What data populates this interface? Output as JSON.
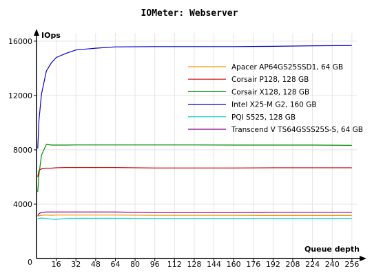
{
  "chart_data": {
    "type": "line",
    "title": "IOMeter: Webserver",
    "xlabel": "Queue depth",
    "ylabel": "IOps",
    "xlim": [
      0,
      260
    ],
    "ylim": [
      0,
      16600
    ],
    "xticks": [
      16,
      32,
      48,
      64,
      80,
      96,
      112,
      128,
      144,
      160,
      176,
      192,
      208,
      224,
      240,
      256
    ],
    "yticks": [
      4000,
      8000,
      12000,
      16000
    ],
    "origin_label": "0",
    "legend_position": "upper-right",
    "series": [
      {
        "name": "Apacer AP64GS25SSD1, 64 GB",
        "color": "#ff9900",
        "x": [
          1,
          2,
          4,
          8,
          12,
          16,
          24,
          32,
          48,
          64,
          96,
          128,
          160,
          192,
          224,
          256
        ],
        "y": [
          3100,
          3150,
          3180,
          3200,
          3180,
          3200,
          3200,
          3200,
          3200,
          3200,
          3180,
          3180,
          3180,
          3170,
          3170,
          3170
        ]
      },
      {
        "name": "Corsair P128, 128 GB",
        "color": "#cc0000",
        "x": [
          1,
          2,
          4,
          8,
          12,
          16,
          24,
          32,
          48,
          64,
          96,
          128,
          160,
          192,
          224,
          256
        ],
        "y": [
          6000,
          6500,
          6600,
          6650,
          6650,
          6680,
          6700,
          6700,
          6700,
          6700,
          6660,
          6660,
          6660,
          6680,
          6680,
          6680
        ]
      },
      {
        "name": "Corsair X128, 128 GB",
        "color": "#008800",
        "x": [
          1,
          2,
          4,
          8,
          12,
          16,
          24,
          32,
          48,
          64,
          96,
          128,
          160,
          192,
          224,
          256
        ],
        "y": [
          4900,
          6200,
          7600,
          8400,
          8350,
          8350,
          8350,
          8360,
          8360,
          8360,
          8360,
          8360,
          8350,
          8350,
          8350,
          8330
        ]
      },
      {
        "name": "Intel X25-M G2, 160 GB",
        "color": "#0000cc",
        "x": [
          1,
          2,
          4,
          8,
          12,
          16,
          24,
          32,
          48,
          64,
          96,
          128,
          160,
          192,
          224,
          256
        ],
        "y": [
          8100,
          10200,
          12100,
          13800,
          14400,
          14800,
          15100,
          15350,
          15480,
          15580,
          15600,
          15600,
          15600,
          15620,
          15660,
          15680
        ]
      },
      {
        "name": "PQI S525, 128 GB",
        "color": "#00cccc",
        "x": [
          1,
          2,
          4,
          8,
          12,
          16,
          24,
          32,
          48,
          64,
          96,
          128,
          160,
          192,
          224,
          256
        ],
        "y": [
          2900,
          2950,
          2980,
          2950,
          2900,
          2880,
          2950,
          2960,
          2960,
          2960,
          2950,
          2950,
          2950,
          2950,
          2950,
          2950
        ]
      },
      {
        "name": "Transcend V TS64GSSS25S-S, 64 GB",
        "color": "#880088",
        "x": [
          1,
          2,
          4,
          8,
          12,
          16,
          24,
          32,
          48,
          64,
          96,
          128,
          160,
          192,
          224,
          256
        ],
        "y": [
          3150,
          3300,
          3400,
          3420,
          3420,
          3420,
          3420,
          3420,
          3420,
          3420,
          3380,
          3380,
          3380,
          3400,
          3400,
          3400
        ]
      }
    ]
  }
}
